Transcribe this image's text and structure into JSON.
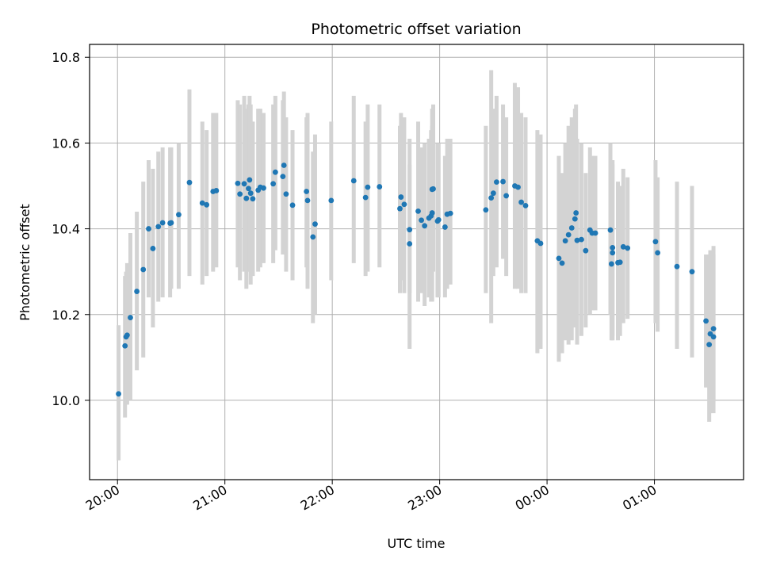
{
  "chart_data": {
    "type": "scatter",
    "title": "Photometric offset variation",
    "xlabel": "UTC time",
    "ylabel": "Photometric offset",
    "x_tick_labels": [
      "20:00",
      "21:00",
      "22:00",
      "23:00",
      "00:00",
      "01:00"
    ],
    "y_tick_labels": [
      "10.0",
      "10.2",
      "10.4",
      "10.6",
      "10.8"
    ],
    "y_ticks": [
      10.0,
      10.2,
      10.4,
      10.6,
      10.8
    ],
    "x_ticks_hours": [
      20,
      21,
      22,
      23,
      24,
      25
    ],
    "xlim_hours": [
      19.74,
      25.83
    ],
    "ylim": [
      9.815,
      10.83
    ],
    "grid": true,
    "error_bar_color": "#d3d3d3",
    "point_color": "#1f77b4",
    "series": [
      {
        "points": [
          [
            20.01,
            10.015,
            9.86,
            10.175
          ],
          [
            20.07,
            10.127,
            9.96,
            10.29
          ],
          [
            20.08,
            10.148,
            9.99,
            10.3
          ],
          [
            20.09,
            10.152,
            9.99,
            10.32
          ],
          [
            20.12,
            10.193,
            10.0,
            10.39
          ],
          [
            20.18,
            10.254,
            10.07,
            10.44
          ],
          [
            20.24,
            10.305,
            10.1,
            10.51
          ],
          [
            20.29,
            10.4,
            10.24,
            10.56
          ],
          [
            20.33,
            10.354,
            10.17,
            10.54
          ],
          [
            20.38,
            10.405,
            10.23,
            10.58
          ],
          [
            20.42,
            10.414,
            10.24,
            10.59
          ],
          [
            20.49,
            10.413,
            10.24,
            10.59
          ],
          [
            20.5,
            10.414,
            10.26,
            10.59
          ],
          [
            20.57,
            10.433,
            10.26,
            10.6
          ],
          [
            20.67,
            10.508,
            10.29,
            10.725
          ],
          [
            20.79,
            10.46,
            10.27,
            10.65
          ],
          [
            20.83,
            10.456,
            10.29,
            10.63
          ],
          [
            20.89,
            10.487,
            10.3,
            10.67
          ],
          [
            20.92,
            10.489,
            10.31,
            10.67
          ],
          [
            21.12,
            10.506,
            10.31,
            10.7
          ],
          [
            21.14,
            10.481,
            10.28,
            10.69
          ],
          [
            21.18,
            10.505,
            10.3,
            10.71
          ],
          [
            21.2,
            10.471,
            10.26,
            10.68
          ],
          [
            21.22,
            10.494,
            10.3,
            10.69
          ],
          [
            21.23,
            10.514,
            10.3,
            10.71
          ],
          [
            21.24,
            10.483,
            10.27,
            10.69
          ],
          [
            21.26,
            10.47,
            10.29,
            10.65
          ],
          [
            21.31,
            10.49,
            10.3,
            10.68
          ],
          [
            21.33,
            10.497,
            10.31,
            10.68
          ],
          [
            21.36,
            10.495,
            10.32,
            10.67
          ],
          [
            21.45,
            10.505,
            10.32,
            10.69
          ],
          [
            21.47,
            10.532,
            10.35,
            10.71
          ],
          [
            21.54,
            10.522,
            10.34,
            10.7
          ],
          [
            21.55,
            10.548,
            10.36,
            10.72
          ],
          [
            21.57,
            10.481,
            10.3,
            10.66
          ],
          [
            21.63,
            10.455,
            10.28,
            10.63
          ],
          [
            21.76,
            10.487,
            10.31,
            10.66
          ],
          [
            21.77,
            10.466,
            10.26,
            10.67
          ],
          [
            21.82,
            10.381,
            10.18,
            10.58
          ],
          [
            21.84,
            10.411,
            10.2,
            10.62
          ],
          [
            21.99,
            10.466,
            10.28,
            10.65
          ],
          [
            22.2,
            10.512,
            10.32,
            10.71
          ],
          [
            22.31,
            10.473,
            10.29,
            10.65
          ],
          [
            22.33,
            10.497,
            10.3,
            10.69
          ],
          [
            22.44,
            10.498,
            10.31,
            10.69
          ],
          [
            22.63,
            10.447,
            10.25,
            10.64
          ],
          [
            22.64,
            10.474,
            10.28,
            10.67
          ],
          [
            22.67,
            10.457,
            10.25,
            10.66
          ],
          [
            22.72,
            10.365,
            10.12,
            10.61
          ],
          [
            22.72,
            10.398,
            10.25,
            10.55
          ],
          [
            22.8,
            10.441,
            10.23,
            10.65
          ],
          [
            22.83,
            10.42,
            10.25,
            10.59
          ],
          [
            22.86,
            10.407,
            10.22,
            10.6
          ],
          [
            22.9,
            10.425,
            10.24,
            10.61
          ],
          [
            22.92,
            10.43,
            10.23,
            10.63
          ],
          [
            22.93,
            10.437,
            10.23,
            10.64
          ],
          [
            22.93,
            10.492,
            10.3,
            10.68
          ],
          [
            22.94,
            10.493,
            10.3,
            10.69
          ],
          [
            22.98,
            10.418,
            10.24,
            10.6
          ],
          [
            22.99,
            10.421,
            10.24,
            10.6
          ],
          [
            23.05,
            10.404,
            10.24,
            10.57
          ],
          [
            23.07,
            10.434,
            10.26,
            10.61
          ],
          [
            23.1,
            10.436,
            10.27,
            10.61
          ],
          [
            23.43,
            10.444,
            10.25,
            10.64
          ],
          [
            23.48,
            10.472,
            10.18,
            10.77
          ],
          [
            23.5,
            10.483,
            10.29,
            10.68
          ],
          [
            23.53,
            10.509,
            10.31,
            10.71
          ],
          [
            23.59,
            10.51,
            10.33,
            10.69
          ],
          [
            23.62,
            10.477,
            10.29,
            10.66
          ],
          [
            23.7,
            10.5,
            10.26,
            10.74
          ],
          [
            23.73,
            10.497,
            10.26,
            10.73
          ],
          [
            23.76,
            10.462,
            10.25,
            10.67
          ],
          [
            23.8,
            10.454,
            10.25,
            10.66
          ],
          [
            23.91,
            10.372,
            10.11,
            10.63
          ],
          [
            23.94,
            10.366,
            10.12,
            10.62
          ],
          [
            24.11,
            10.331,
            10.09,
            10.57
          ],
          [
            24.14,
            10.32,
            10.11,
            10.53
          ],
          [
            24.17,
            10.372,
            10.14,
            10.6
          ],
          [
            24.2,
            10.386,
            10.13,
            10.64
          ],
          [
            24.23,
            10.402,
            10.14,
            10.66
          ],
          [
            24.26,
            10.423,
            10.17,
            10.68
          ],
          [
            24.27,
            10.437,
            10.18,
            10.69
          ],
          [
            24.28,
            10.373,
            10.13,
            10.61
          ],
          [
            24.32,
            10.375,
            10.15,
            10.6
          ],
          [
            24.36,
            10.349,
            10.17,
            10.53
          ],
          [
            24.4,
            10.397,
            10.2,
            10.59
          ],
          [
            24.42,
            10.39,
            10.21,
            10.57
          ],
          [
            24.45,
            10.39,
            10.21,
            10.57
          ],
          [
            24.59,
            10.397,
            10.2,
            10.6
          ],
          [
            24.6,
            10.318,
            10.14,
            10.5
          ],
          [
            24.61,
            10.344,
            10.14,
            10.55
          ],
          [
            24.61,
            10.356,
            10.15,
            10.56
          ],
          [
            24.66,
            10.321,
            10.14,
            10.51
          ],
          [
            24.68,
            10.322,
            10.15,
            10.5
          ],
          [
            24.71,
            10.358,
            10.18,
            10.54
          ],
          [
            24.75,
            10.355,
            10.19,
            10.52
          ],
          [
            25.01,
            10.37,
            10.18,
            10.56
          ],
          [
            25.03,
            10.344,
            10.16,
            10.52
          ],
          [
            25.21,
            10.312,
            10.12,
            10.51
          ],
          [
            25.35,
            10.3,
            10.1,
            10.5
          ],
          [
            25.48,
            10.185,
            10.03,
            10.34
          ],
          [
            25.51,
            10.13,
            9.95,
            10.34
          ],
          [
            25.52,
            10.155,
            9.97,
            10.35
          ],
          [
            25.55,
            10.148,
            9.97,
            10.36
          ],
          [
            25.55,
            10.167,
            10.0,
            10.34
          ]
        ]
      }
    ]
  }
}
